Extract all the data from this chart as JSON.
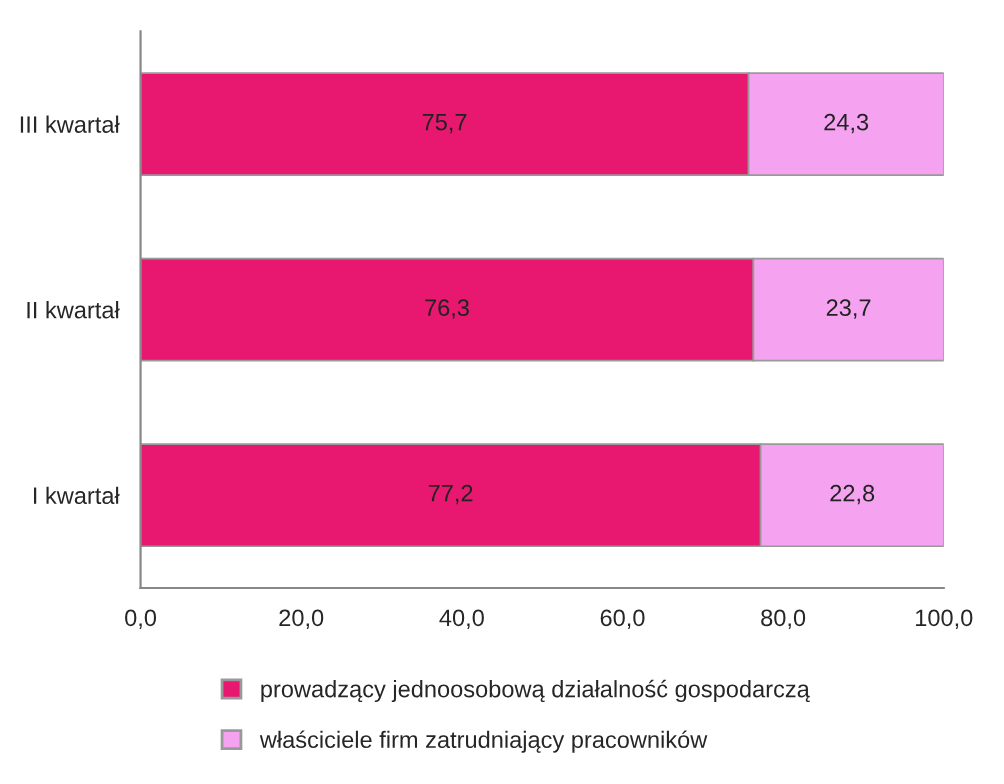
{
  "chart_data": {
    "type": "bar",
    "orientation": "horizontal",
    "stacked": true,
    "categories": [
      "III kwartał",
      "II kwartał",
      "I kwartał"
    ],
    "series": [
      {
        "name": "prowadzący jednoosobową działalność gospodarczą",
        "color": "#e8176f",
        "values": [
          75.7,
          76.3,
          77.2
        ],
        "value_labels": [
          "75,7",
          "76,3",
          "77,2"
        ]
      },
      {
        "name": "właściciele firm zatrudniający pracowników",
        "color": "#f5a3f0",
        "values": [
          24.3,
          23.7,
          22.8
        ],
        "value_labels": [
          "24,3",
          "23,7",
          "22,8"
        ]
      }
    ],
    "xlim": [
      0,
      100
    ],
    "xticks": [
      {
        "value": 0,
        "label": "0,0"
      },
      {
        "value": 20,
        "label": "20,0"
      },
      {
        "value": 40,
        "label": "40,0"
      },
      {
        "value": 60,
        "label": "60,0"
      },
      {
        "value": 80,
        "label": "80,0"
      },
      {
        "value": 100,
        "label": "100,0"
      }
    ],
    "grid": false,
    "legend": "bottom"
  }
}
